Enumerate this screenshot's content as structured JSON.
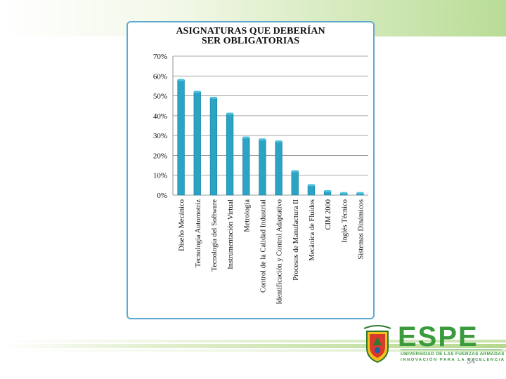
{
  "slide": {
    "page_number": "34"
  },
  "logo": {
    "name": "ESPE",
    "line1": "UNIVERSIDAD DE LAS FUERZAS ARMADAS",
    "line2": "INNOVACIÓN PARA LA EXCELENCIA",
    "crest_text": "ESPE",
    "brand_color": "#3a9b3c"
  },
  "chart_data": {
    "type": "bar",
    "title": [
      "ASIGNATURAS QUE DEBERÍAN",
      "SER OBLIGATORIAS"
    ],
    "xlabel": "",
    "ylabel": "",
    "ylim": [
      0,
      70
    ],
    "yticks": [
      "0%",
      "10%",
      "20%",
      "30%",
      "40%",
      "50%",
      "60%",
      "70%"
    ],
    "ytick_values": [
      0,
      10,
      20,
      30,
      40,
      50,
      60,
      70
    ],
    "grid": true,
    "bar_color": "#2aa3c4",
    "categories": [
      "Diseño Mecánico",
      "Tecnología Automotriz",
      "Tecnología del Software",
      "Instrumentación Virtual",
      "Metrología",
      "Control de la Calidad Industrial",
      "Identificación y Control Adaptativo",
      "Procesos de Manufactura II",
      "Mecánica de Fluidos",
      "CIM 2000",
      "Inglés Técnico",
      "Sistemas Dinámicos"
    ],
    "values": [
      58,
      52,
      49,
      41,
      29,
      28,
      27,
      12,
      5,
      2,
      1,
      1
    ]
  }
}
